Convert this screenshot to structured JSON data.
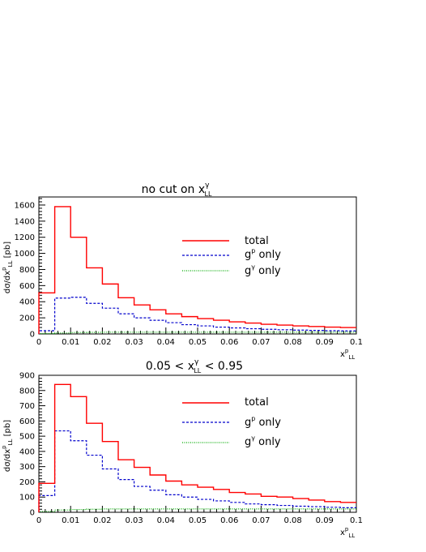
{
  "chart_data": [
    {
      "type": "histogram-step",
      "title": "no cut on x^γ_LL",
      "ylabel": "dσ/dx^p_LL [pb]",
      "xlabel": "x^p_LL",
      "xlim": [
        0,
        0.1
      ],
      "ylim": [
        0,
        1700
      ],
      "x_ticks": [
        0,
        0.01,
        0.02,
        0.03,
        0.04,
        0.05,
        0.06,
        0.07,
        0.08,
        0.09,
        0.1
      ],
      "x_tick_labels": [
        "0",
        "0.01",
        "0.02",
        "0.03",
        "0.04",
        "0.05",
        "0.06",
        "0.07",
        "0.08",
        "0.09",
        "0.1"
      ],
      "y_ticks": [
        0,
        200,
        400,
        600,
        800,
        1000,
        1200,
        1400,
        1600
      ],
      "y_tick_labels": [
        "0",
        "200",
        "400",
        "600",
        "800",
        "1000",
        "1200",
        "1400",
        "1600"
      ],
      "bin_edges": [
        0,
        0.005,
        0.01,
        0.015,
        0.02,
        0.025,
        0.03,
        0.035,
        0.04,
        0.045,
        0.05,
        0.055,
        0.06,
        0.065,
        0.07,
        0.075,
        0.08,
        0.085,
        0.09,
        0.095,
        0.1
      ],
      "series": [
        {
          "name": "total",
          "color": "#ff0000",
          "style": "solid",
          "values": [
            510,
            1580,
            1200,
            820,
            620,
            450,
            360,
            300,
            250,
            215,
            190,
            170,
            150,
            135,
            120,
            110,
            100,
            92,
            85,
            80
          ]
        },
        {
          "name": "g^p only",
          "color": "#0000cc",
          "style": "dashed",
          "values": [
            40,
            445,
            455,
            380,
            320,
            250,
            200,
            170,
            140,
            115,
            100,
            85,
            75,
            65,
            58,
            52,
            48,
            44,
            40,
            38
          ]
        },
        {
          "name": "g^γ only",
          "color": "#00aa00",
          "style": "dotted",
          "values": [
            5,
            12,
            18,
            20,
            22,
            22,
            22,
            22,
            22,
            22,
            22,
            22,
            22,
            22,
            22,
            22,
            22,
            22,
            22,
            22
          ]
        }
      ],
      "legend_position": "right"
    },
    {
      "type": "histogram-step",
      "title": "0.05 < x^γ_LL < 0.95",
      "ylabel": "dσ/dx^p_LL [pb]",
      "xlabel": "x^p_LL",
      "xlim": [
        0,
        0.1
      ],
      "ylim": [
        0,
        900
      ],
      "x_ticks": [
        0,
        0.01,
        0.02,
        0.03,
        0.04,
        0.05,
        0.06,
        0.07,
        0.08,
        0.09,
        0.1
      ],
      "x_tick_labels": [
        "0",
        "0.01",
        "0.02",
        "0.03",
        "0.04",
        "0.05",
        "0.06",
        "0.07",
        "0.08",
        "0.09",
        "0.1"
      ],
      "y_ticks": [
        0,
        100,
        200,
        300,
        400,
        500,
        600,
        700,
        800,
        900
      ],
      "y_tick_labels": [
        "0",
        "100",
        "200",
        "300",
        "400",
        "500",
        "600",
        "700",
        "800",
        "900"
      ],
      "bin_edges": [
        0,
        0.005,
        0.01,
        0.015,
        0.02,
        0.025,
        0.03,
        0.035,
        0.04,
        0.045,
        0.05,
        0.055,
        0.06,
        0.065,
        0.07,
        0.075,
        0.08,
        0.085,
        0.09,
        0.095,
        0.1
      ],
      "series": [
        {
          "name": "total",
          "color": "#ff0000",
          "style": "solid",
          "values": [
            190,
            840,
            760,
            585,
            465,
            345,
            295,
            245,
            205,
            180,
            165,
            150,
            130,
            120,
            105,
            100,
            90,
            80,
            70,
            65
          ]
        },
        {
          "name": "g^p only",
          "color": "#0000cc",
          "style": "dashed",
          "values": [
            110,
            535,
            470,
            375,
            285,
            215,
            170,
            145,
            115,
            100,
            85,
            75,
            65,
            55,
            50,
            45,
            40,
            37,
            33,
            30
          ]
        },
        {
          "name": "g^γ only",
          "color": "#00aa00",
          "style": "dotted",
          "values": [
            5,
            15,
            18,
            20,
            22,
            22,
            22,
            22,
            22,
            22,
            22,
            22,
            22,
            22,
            22,
            22,
            22,
            22,
            22,
            22
          ]
        }
      ],
      "legend_position": "right"
    }
  ],
  "panels": [
    {
      "title_main": "no cut on x",
      "title_sup": "γ",
      "title_sub": "LL",
      "title_rest": "",
      "ylabel_main": "dσ/dx",
      "ylabel_sup": "p",
      "ylabel_sub": "LL",
      "ylabel_rest": " [pb]",
      "xlabel_main": "x",
      "xlabel_sup": "p",
      "xlabel_sub": "LL",
      "legend": [
        {
          "main": "total",
          "sup": ""
        },
        {
          "main": "g",
          "sup": "p",
          "rest": " only"
        },
        {
          "main": "g",
          "sup": "γ",
          "rest": " only"
        }
      ]
    },
    {
      "title_main": "0.05 < x",
      "title_sup": "γ",
      "title_sub": "LL",
      "title_rest": " < 0.95",
      "ylabel_main": "dσ/dx",
      "ylabel_sup": "p",
      "ylabel_sub": "LL",
      "ylabel_rest": " [pb]",
      "xlabel_main": "x",
      "xlabel_sup": "p",
      "xlabel_sub": "LL",
      "legend": [
        {
          "main": "total",
          "sup": ""
        },
        {
          "main": "g",
          "sup": "p",
          "rest": " only"
        },
        {
          "main": "g",
          "sup": "γ",
          "rest": " only"
        }
      ]
    }
  ]
}
